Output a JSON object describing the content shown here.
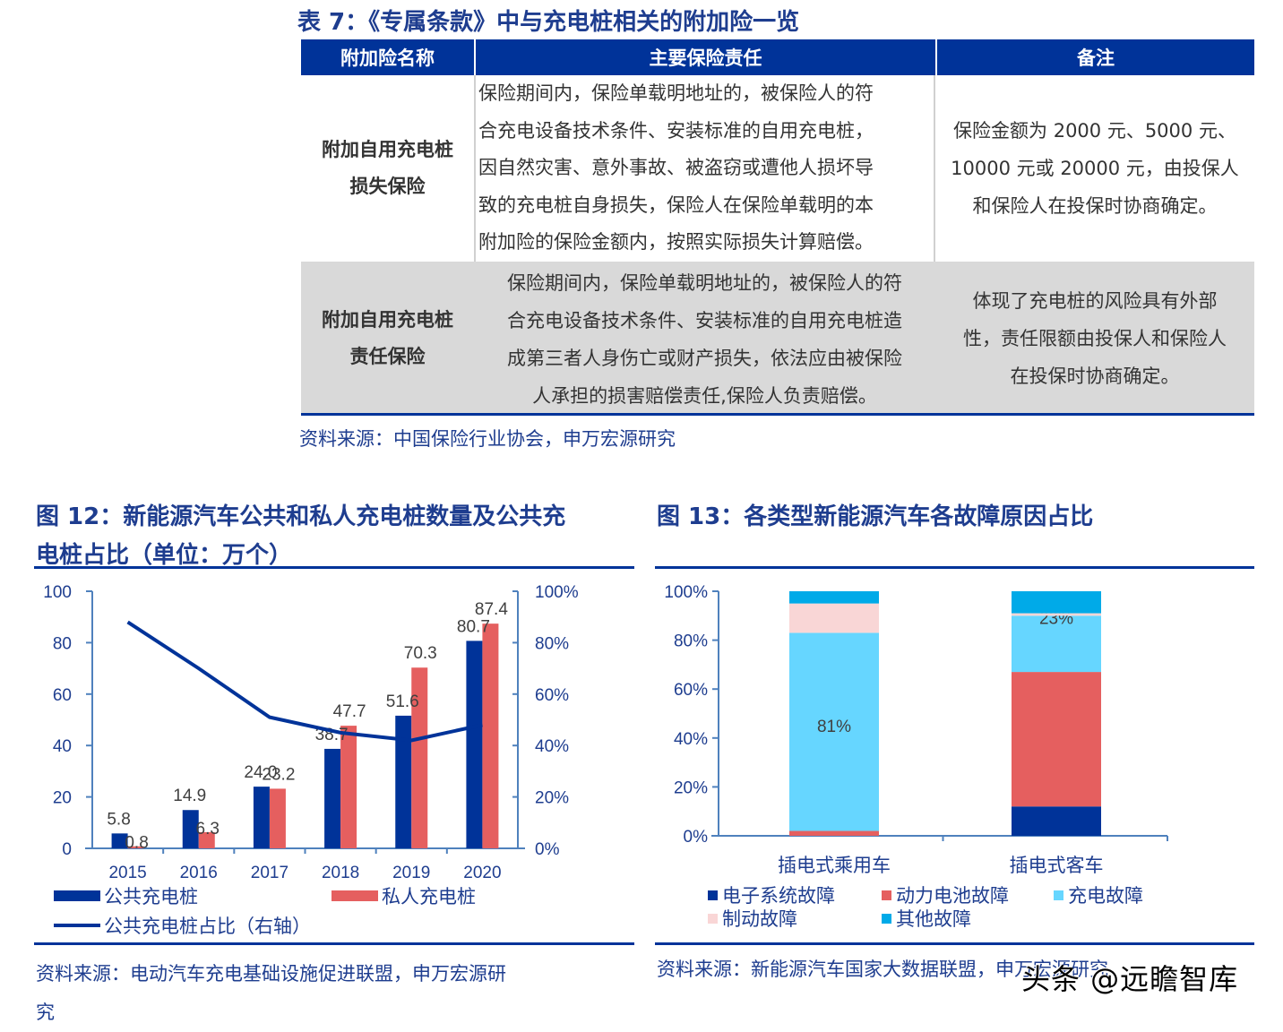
{
  "table7": {
    "title": "表 7：《专属条款》中与充电桩相关的附加险一览",
    "headers": [
      "附加险名称",
      "主要保险责任",
      "备注"
    ],
    "rows": [
      {
        "name_lines": [
          "附加自用充电桩",
          "损失保险"
        ],
        "duty_lines": [
          "保险期间内，保险单载明地址的，被保险人的符",
          "合充电设备技术条件、安装标准的自用充电桩，",
          "因自然灾害、意外事故、被盗窃或遭他人损坏导",
          "致的充电桩自身损失，保险人在保险单载明的本",
          "附加险的保险金额内，按照实际损失计算赔偿。"
        ],
        "note_lines": [
          "保险金额为 2000 元、5000 元、",
          "10000 元或 20000 元，由投保人",
          "和保险人在投保时协商确定。"
        ]
      },
      {
        "name_lines": [
          "附加自用充电桩",
          "责任保险"
        ],
        "duty_lines": [
          "保险期间内，保险单载明地址的，被保险人的符",
          "合充电设备技术条件、安装标准的自用充电桩造",
          "成第三者人身伤亡或财产损失，依法应由被保险",
          "人承担的损害赔偿责任,保险人负责赔偿。"
        ],
        "note_lines": [
          "体现了充电桩的风险具有外部",
          "性，责任限额由投保人和保险人",
          "在投保时协商确定。"
        ]
      }
    ],
    "source": "资料来源：中国保险行业协会，申万宏源研究"
  },
  "fig12": {
    "title_lines": [
      "图  12：新能源汽车公共和私人充电桩数量及公共充",
      "电桩占比（单位：万个）"
    ],
    "source_lines": [
      "资料来源：电动汽车充电基础设施促进联盟，申万宏源研",
      "究"
    ],
    "legend": {
      "public": "公共充电桩",
      "private": "私人充电桩",
      "ratio": "公共充电桩占比（右轴）"
    }
  },
  "fig13": {
    "title": "图 13：各类型新能源汽车各故障原因占比",
    "source": "资料来源：新能源汽车国家大数据联盟，申万宏源研究",
    "legend": [
      "电子系统故障",
      "动力电池故障",
      "充电故障",
      "制动故障",
      "其他故障"
    ]
  },
  "watermark": "头条 @远瞻智库",
  "colors": {
    "navy": "#003399",
    "red": "#e55f5f",
    "light_blue": "#66d6ff",
    "pink": "#f9d6d6",
    "blue": "#00aae8",
    "title": "#1e3d8f",
    "axis": "#4f81bd"
  },
  "chart_data": [
    {
      "type": "bar",
      "title": "新能源汽车公共和私人充电桩数量及公共充电桩占比（单位：万个）",
      "categories": [
        "2015",
        "2016",
        "2017",
        "2018",
        "2019",
        "2020"
      ],
      "series": [
        {
          "name": "公共充电桩",
          "type": "bar",
          "values": [
            5.8,
            14.9,
            24.0,
            38.7,
            51.6,
            80.7
          ]
        },
        {
          "name": "私人充电桩",
          "type": "bar",
          "values": [
            0.8,
            6.3,
            23.2,
            47.7,
            70.3,
            87.4
          ]
        },
        {
          "name": "公共充电桩占比（右轴）",
          "type": "line",
          "axis": "right",
          "values": [
            0.88,
            0.7,
            0.51,
            0.45,
            0.42,
            0.48
          ]
        }
      ],
      "y_left": {
        "ticks": [
          "0",
          "20",
          "40",
          "60",
          "80",
          "100"
        ],
        "ylim": [
          0,
          100
        ]
      },
      "y_right": {
        "ticks": [
          "0%",
          "20%",
          "40%",
          "60%",
          "80%",
          "100%"
        ],
        "ylim": [
          0,
          1
        ]
      },
      "data_labels": [
        "5.8",
        "0.8",
        "14.9",
        "6.3",
        "24.0",
        "23.2",
        "38.7",
        "47.7",
        "51.6",
        "70.3",
        "80.7",
        "87.4"
      ],
      "legend_position": "bottom"
    },
    {
      "type": "bar",
      "stacked": true,
      "title": "各类型新能源汽车各故障原因占比",
      "categories": [
        "插电式乘用车",
        "插电式客车"
      ],
      "series": [
        {
          "name": "电子系统故障",
          "values": [
            0,
            12
          ]
        },
        {
          "name": "动力电池故障",
          "values": [
            2,
            55
          ]
        },
        {
          "name": "充电故障",
          "values": [
            81,
            23
          ]
        },
        {
          "name": "制动故障",
          "values": [
            12,
            1
          ]
        },
        {
          "name": "其他故障",
          "values": [
            5,
            9
          ]
        }
      ],
      "data_labels": [
        "81%",
        "23%"
      ],
      "y": {
        "ticks": [
          "0%",
          "20%",
          "40%",
          "60%",
          "80%",
          "100%"
        ],
        "ylim": [
          0,
          100
        ]
      },
      "legend_position": "bottom"
    }
  ]
}
